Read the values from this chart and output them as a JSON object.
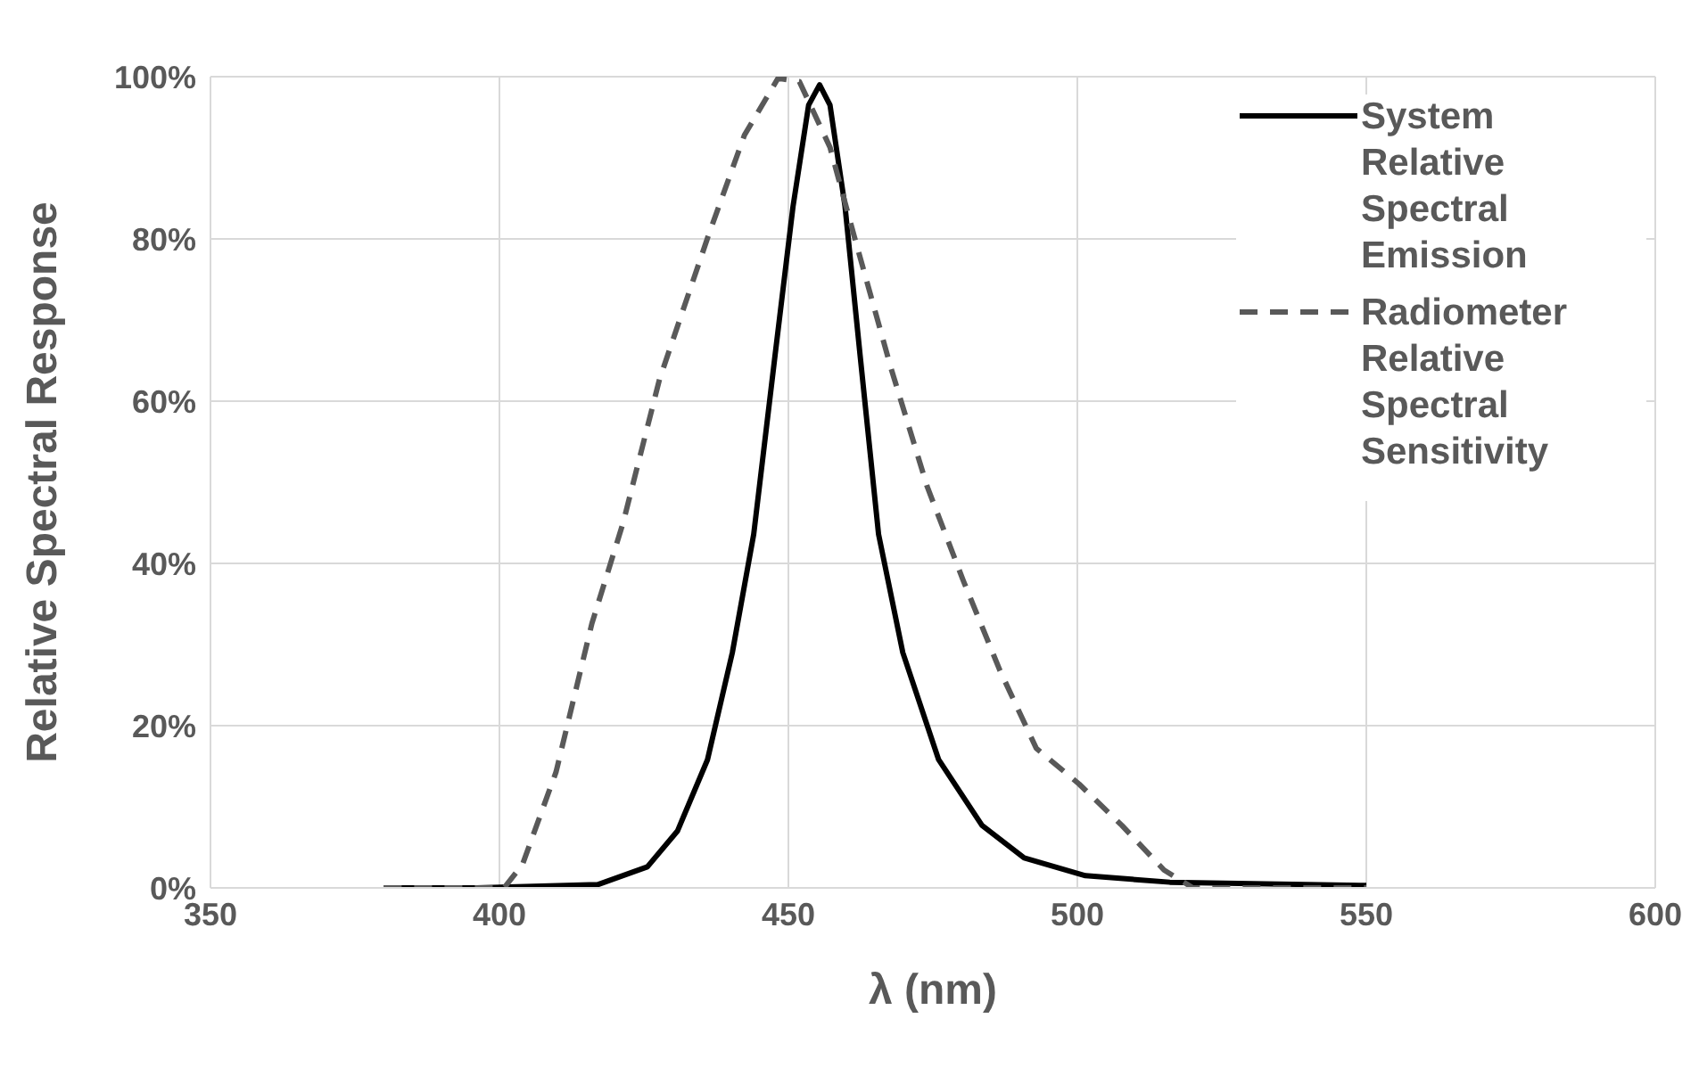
{
  "chart_data": {
    "type": "line",
    "xlabel": "λ (nm)",
    "ylabel": "Relative Spectral Response",
    "xlim": [
      350,
      600
    ],
    "xticks": [
      350,
      400,
      450,
      500,
      550,
      600
    ],
    "ylim": [
      0,
      100
    ],
    "yticks": [
      {
        "value": 0,
        "label": "0%"
      },
      {
        "value": 20,
        "label": "20%"
      },
      {
        "value": 40,
        "label": "40%"
      },
      {
        "value": 60,
        "label": "60%"
      },
      {
        "value": 80,
        "label": "80%"
      },
      {
        "value": 100,
        "label": "100%"
      }
    ],
    "grid": true,
    "legend": "top right",
    "marker": "none",
    "series": [
      {
        "name": "System Relative Spectral Emission",
        "color": "#000000",
        "line_style": "solid",
        "x": [
          380,
          396,
          417,
          425.6,
          430.8,
          436,
          440.3,
          444,
          447.7,
          450.8,
          453.5,
          455.4,
          457.2,
          459.8,
          462.4,
          465.6,
          469.8,
          476,
          483.5,
          490.8,
          501.4,
          516,
          550
        ],
        "values": [
          0,
          0,
          0.4,
          2.6,
          7,
          15.8,
          29,
          43.6,
          65.7,
          84,
          96.5,
          99,
          96.5,
          84,
          65.7,
          43.6,
          29,
          15.8,
          7.7,
          3.7,
          1.5,
          0.7,
          0.3
        ]
      },
      {
        "name": "Radiometer Relative Spectral Sensitivity",
        "color": "#595959",
        "line_style": "dashed",
        "x": [
          380,
          400.8,
          404,
          409.8,
          416,
          421.4,
          427.7,
          436.1,
          442.4,
          448.2,
          451.9,
          457.2,
          461.4,
          467.7,
          474,
          480.3,
          486.6,
          492.9,
          500.3,
          507.7,
          515,
          520,
          550
        ],
        "values": [
          0,
          0,
          2.9,
          14.3,
          32.6,
          45,
          62.7,
          80.3,
          92.8,
          99.8,
          99.4,
          91.3,
          80.3,
          64.2,
          49.5,
          37.8,
          26.8,
          17.2,
          12.8,
          7.7,
          2.2,
          0,
          0
        ]
      }
    ]
  }
}
